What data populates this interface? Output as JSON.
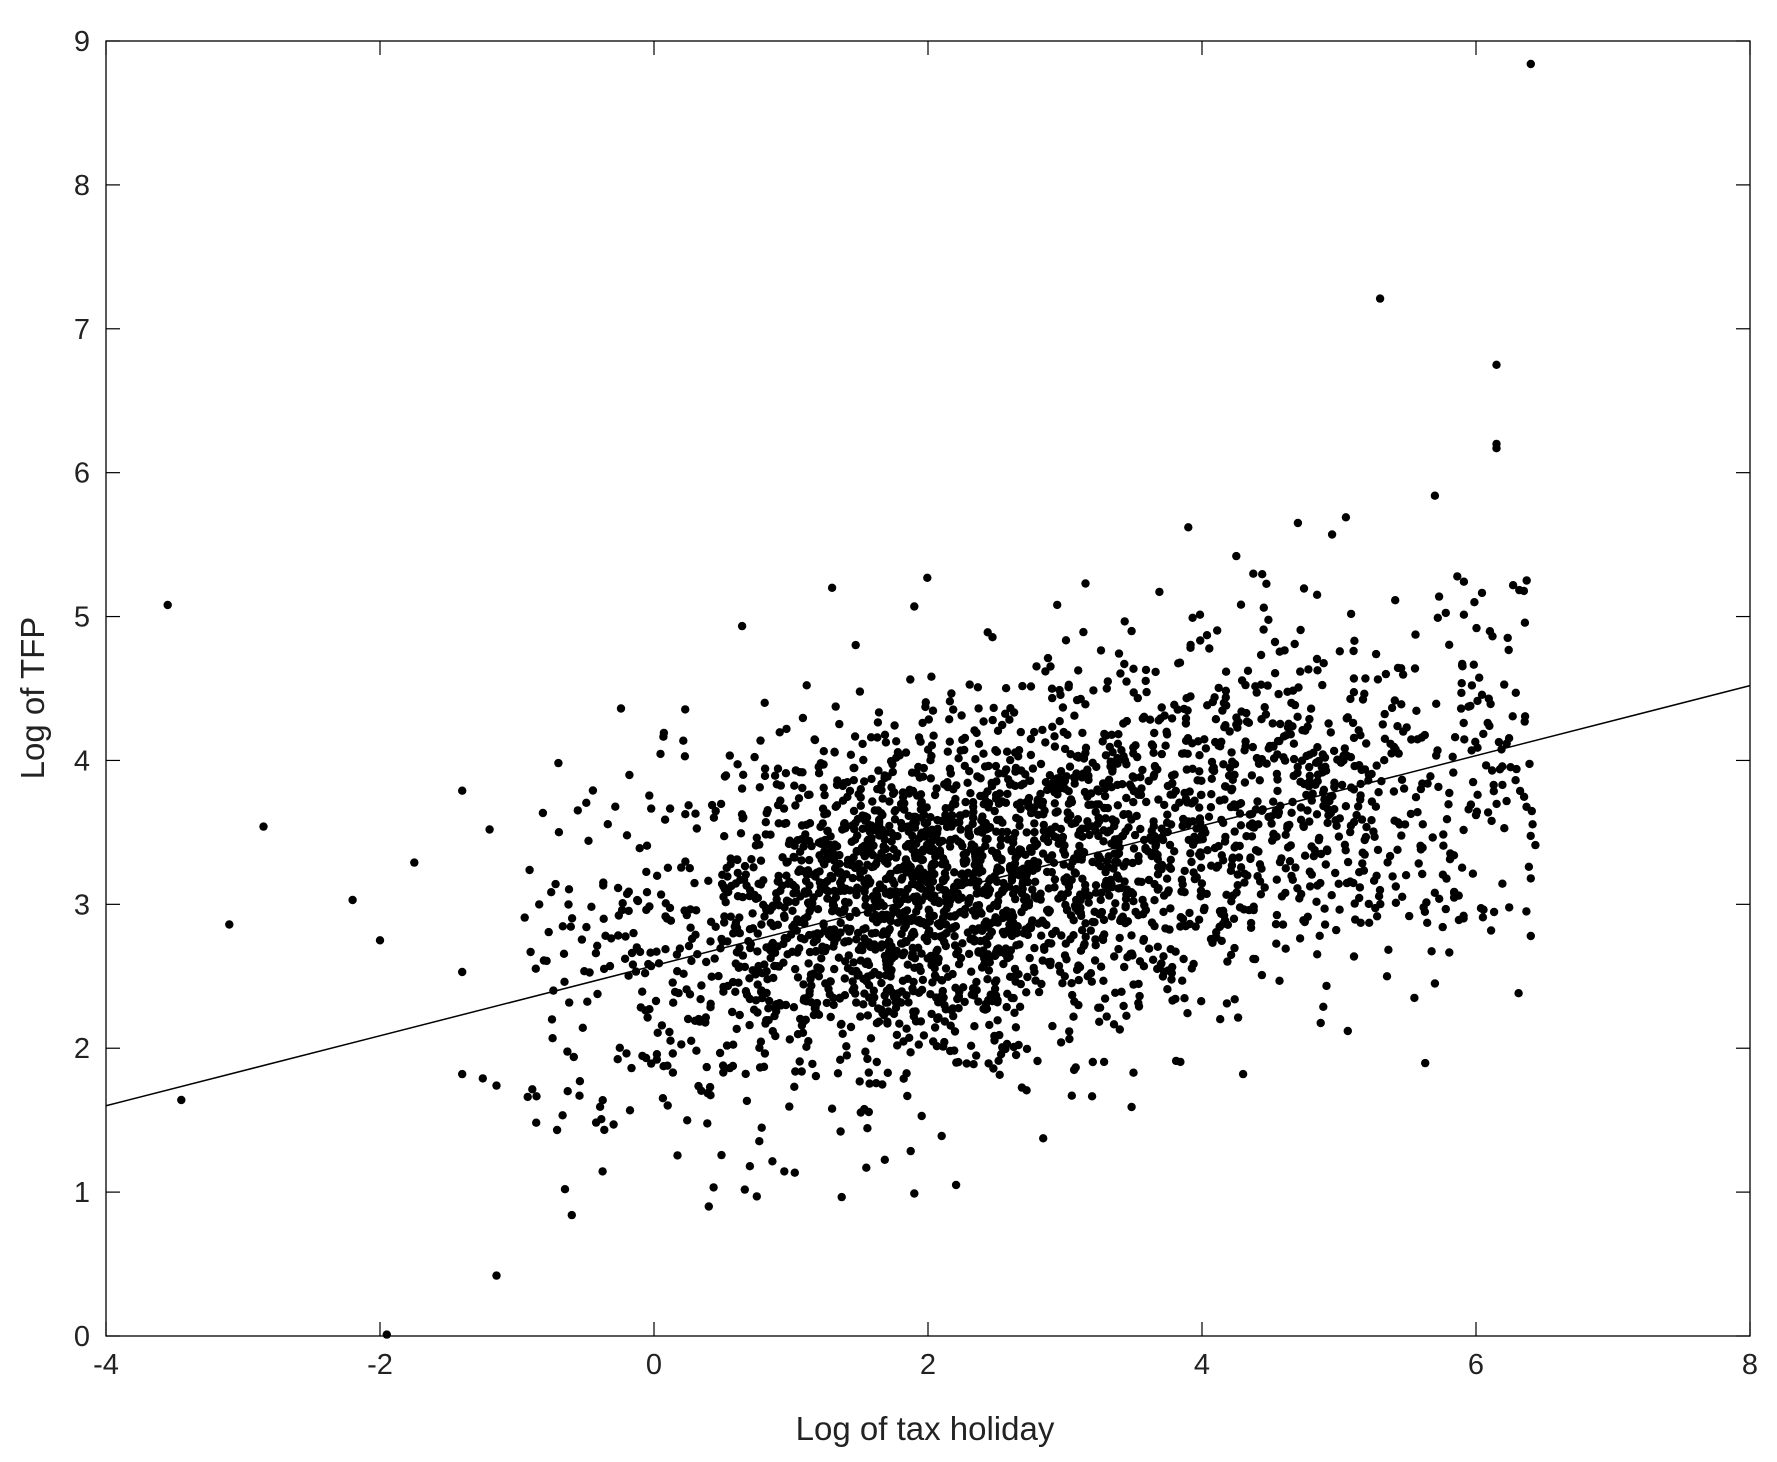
{
  "chart_data": {
    "type": "scatter",
    "title": "",
    "xlabel": "Log of tax holiday",
    "ylabel": "Log of TFP",
    "xlim": [
      -4,
      8
    ],
    "ylim": [
      0,
      9
    ],
    "xticks": [
      -4,
      -2,
      0,
      2,
      4,
      6,
      8
    ],
    "yticks": [
      0,
      1,
      2,
      3,
      4,
      5,
      6,
      7,
      8,
      9
    ],
    "grid": false,
    "legend": "none",
    "marker_color": "#000000",
    "fit_line": {
      "x": [
        -4,
        8
      ],
      "y": [
        1.6,
        4.52
      ],
      "color": "#000000"
    },
    "points": [
      {
        "x": 6.4,
        "y": 8.84
      },
      {
        "x": 5.3,
        "y": 7.21
      },
      {
        "x": 6.15,
        "y": 6.75
      },
      {
        "x": 6.15,
        "y": 6.2
      },
      {
        "x": 6.15,
        "y": 6.17
      },
      {
        "x": 5.7,
        "y": 5.84
      },
      {
        "x": -3.55,
        "y": 5.08
      },
      {
        "x": -3.45,
        "y": 1.64
      },
      {
        "x": -3.1,
        "y": 2.86
      },
      {
        "x": -2.85,
        "y": 3.54
      },
      {
        "x": -2.2,
        "y": 3.03
      },
      {
        "x": -2.0,
        "y": 2.75
      },
      {
        "x": -1.75,
        "y": 3.29
      },
      {
        "x": -1.95,
        "y": 0.01
      },
      {
        "x": -1.4,
        "y": 3.79
      },
      {
        "x": -1.2,
        "y": 3.52
      },
      {
        "x": -1.15,
        "y": 0.42
      },
      {
        "x": -1.4,
        "y": 1.82
      },
      {
        "x": -1.25,
        "y": 1.79
      },
      {
        "x": -1.15,
        "y": 1.74
      },
      {
        "x": -1.4,
        "y": 2.53
      },
      {
        "x": -0.65,
        "y": 1.02
      },
      {
        "x": -0.6,
        "y": 0.84
      },
      {
        "x": 0.4,
        "y": 0.9
      },
      {
        "x": 0.75,
        "y": 0.97
      },
      {
        "x": 1.9,
        "y": 0.99
      },
      {
        "x": 3.9,
        "y": 5.62
      },
      {
        "x": 4.7,
        "y": 5.65
      },
      {
        "x": 4.95,
        "y": 5.57
      },
      {
        "x": 5.05,
        "y": 5.69
      },
      {
        "x": 1.3,
        "y": 5.2
      },
      {
        "x": 1.9,
        "y": 5.07
      },
      {
        "x": 3.15,
        "y": 5.23
      },
      {
        "x": 4.25,
        "y": 5.42
      },
      {
        "x": 5.35,
        "y": 2.5
      },
      {
        "x": 5.55,
        "y": 2.35
      },
      {
        "x": 5.7,
        "y": 2.45
      },
      {
        "x": 6.4,
        "y": 2.78
      },
      {
        "x": 6.4,
        "y": 3.18
      },
      {
        "x": 6.05,
        "y": 2.91
      },
      {
        "x": 4.3,
        "y": 1.82
      },
      {
        "x": 3.5,
        "y": 1.83
      },
      {
        "x": 3.05,
        "y": 1.67
      },
      {
        "x": 2.1,
        "y": 1.39
      },
      {
        "x": 1.55,
        "y": 1.17
      },
      {
        "x": 1.3,
        "y": 1.58
      },
      {
        "x": 0.7,
        "y": 1.18
      }
    ],
    "cloud": [
      {
        "mx": 1.8,
        "my": 3.0,
        "sx": 0.75,
        "sy": 0.55,
        "n": 1400
      },
      {
        "mx": 3.2,
        "my": 3.45,
        "sx": 0.9,
        "sy": 0.58,
        "n": 900
      },
      {
        "mx": 4.8,
        "my": 3.75,
        "sx": 0.75,
        "sy": 0.6,
        "n": 500
      },
      {
        "mx": 0.3,
        "my": 2.4,
        "sx": 0.7,
        "sy": 0.65,
        "n": 260
      },
      {
        "mx": 6.1,
        "my": 4.3,
        "sx": 0.22,
        "sy": 0.75,
        "n": 60
      }
    ]
  }
}
